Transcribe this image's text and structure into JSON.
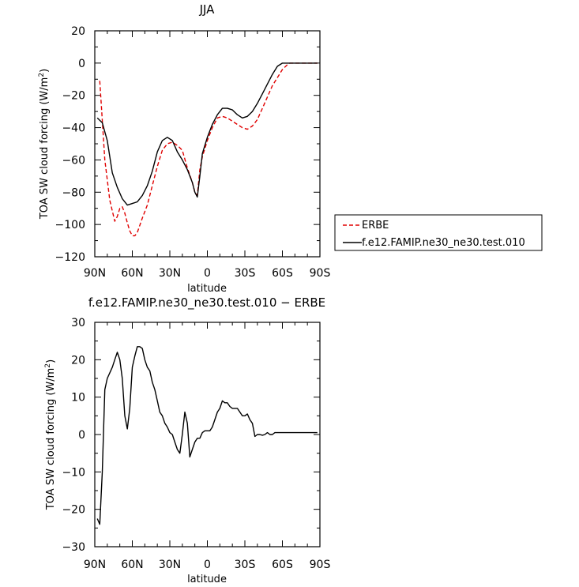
{
  "chart_data": [
    {
      "type": "line",
      "title": "JJA",
      "xlabel": "latitude",
      "ylabel": "TOA SW cloud forcing (W/m",
      "ylabel_sup": "2",
      "ylabel_tail": ")",
      "xlim": [
        90,
        -90
      ],
      "ylim": [
        -120,
        20
      ],
      "x_ticks": [
        90,
        60,
        30,
        0,
        -30,
        -60,
        -90
      ],
      "x_tick_labels": [
        "90N",
        "60N",
        "30N",
        "0",
        "30S",
        "60S",
        "90S"
      ],
      "y_ticks": [
        -120,
        -100,
        -80,
        -60,
        -40,
        -20,
        0,
        20
      ],
      "y_tick_labels": [
        "−120",
        "−100",
        "−80",
        "−60",
        "−40",
        "−20",
        "0",
        "20"
      ],
      "legend_position": "right",
      "series": [
        {
          "name": "ERBE",
          "color": "#e00000",
          "dash": "dashed",
          "x": [
            86,
            82,
            78,
            74,
            72,
            70,
            68,
            66,
            64,
            62,
            60,
            58,
            56,
            52,
            48,
            44,
            40,
            36,
            32,
            28,
            24,
            20,
            16,
            12,
            10,
            8,
            6,
            4,
            0,
            -4,
            -8,
            -12,
            -16,
            -20,
            -24,
            -28,
            -32,
            -36,
            -40,
            -44,
            -48,
            -52,
            -56,
            -60,
            -64,
            -66,
            -68,
            -70,
            -72,
            -76,
            -80,
            -84,
            -88
          ],
          "values": [
            -11,
            -60,
            -85,
            -98,
            -95,
            -90,
            -89,
            -93,
            -99,
            -104,
            -107,
            -107,
            -105,
            -96,
            -88,
            -76,
            -64,
            -54,
            -50,
            -49,
            -51,
            -54,
            -65,
            -74,
            -80,
            -82,
            -66,
            -58,
            -48,
            -40,
            -34,
            -33,
            -34,
            -36,
            -38,
            -40,
            -41,
            -39,
            -35,
            -28,
            -21,
            -14,
            -9,
            -4,
            -1,
            0,
            0,
            0,
            0,
            0,
            0,
            0,
            0
          ]
        },
        {
          "name": "f.e12.FAMIP.ne30_ne30.test.010",
          "color": "#000000",
          "dash": "solid",
          "x": [
            88,
            84,
            80,
            76,
            72,
            68,
            64,
            60,
            56,
            52,
            48,
            44,
            40,
            36,
            32,
            28,
            24,
            20,
            16,
            12,
            10,
            8,
            6,
            4,
            0,
            -4,
            -8,
            -12,
            -16,
            -20,
            -24,
            -28,
            -32,
            -36,
            -40,
            -44,
            -48,
            -52,
            -56,
            -60,
            -64,
            -66,
            -68,
            -70,
            -72,
            -76,
            -80,
            -84,
            -88
          ],
          "values": [
            -34,
            -37,
            -48,
            -68,
            -77,
            -84,
            -88,
            -87,
            -86,
            -82,
            -76,
            -67,
            -55,
            -48,
            -46,
            -48,
            -55,
            -60,
            -66,
            -74,
            -80,
            -83,
            -70,
            -56,
            -46,
            -38,
            -32,
            -28,
            -28,
            -29,
            -32,
            -34,
            -33,
            -30,
            -25,
            -19,
            -13,
            -7,
            -2,
            0,
            0,
            0,
            0,
            0,
            0,
            0,
            0,
            0,
            0
          ]
        }
      ]
    },
    {
      "type": "line",
      "title": "f.e12.FAMIP.ne30_ne30.test.010 − ERBE",
      "xlabel": "latitude",
      "ylabel": "TOA SW cloud forcing (W/m",
      "ylabel_sup": "2",
      "ylabel_tail": ")",
      "xlim": [
        90,
        -90
      ],
      "ylim": [
        -30,
        30
      ],
      "x_ticks": [
        90,
        60,
        30,
        0,
        -30,
        -60,
        -90
      ],
      "x_tick_labels": [
        "90N",
        "60N",
        "30N",
        "0",
        "30S",
        "60S",
        "90S"
      ],
      "y_ticks": [
        -30,
        -20,
        -10,
        0,
        10,
        20,
        30
      ],
      "y_tick_labels": [
        "−30",
        "−20",
        "−10",
        "0",
        "10",
        "20",
        "30"
      ],
      "series": [
        {
          "color": "#000000",
          "dash": "solid",
          "x": [
            88,
            86,
            84,
            82,
            80,
            76,
            74,
            72,
            70,
            68,
            66,
            64,
            62,
            60,
            58,
            56,
            54,
            52,
            50,
            48,
            46,
            44,
            42,
            40,
            38,
            36,
            34,
            32,
            30,
            28,
            26,
            24,
            22,
            20,
            18,
            16,
            14,
            12,
            10,
            8,
            6,
            4,
            2,
            0,
            -2,
            -4,
            -6,
            -8,
            -10,
            -12,
            -14,
            -16,
            -18,
            -20,
            -22,
            -24,
            -26,
            -28,
            -30,
            -32,
            -34,
            -36,
            -38,
            -40,
            -42,
            -44,
            -46,
            -48,
            -50,
            -52,
            -54,
            -56,
            -58,
            -60,
            -62,
            -64,
            -66,
            -68,
            -70,
            -72,
            -74,
            -76,
            -78,
            -80,
            -82,
            -84,
            -86,
            -88
          ],
          "values": [
            -22.5,
            -24,
            -10,
            12,
            15,
            18,
            20,
            22,
            20,
            15,
            5,
            1.5,
            7,
            18,
            21,
            23.5,
            23.5,
            23,
            20,
            18,
            17,
            14,
            12,
            9,
            6,
            5,
            3,
            2,
            0.5,
            0,
            -2,
            -4,
            -5,
            0,
            6,
            3,
            -6,
            -4,
            -2,
            -1,
            -1,
            0.5,
            1,
            1,
            1,
            2,
            4,
            6,
            7,
            9,
            8.5,
            8.5,
            7.5,
            7,
            7,
            7,
            6,
            5,
            5,
            5.5,
            4,
            3,
            -0.5,
            0,
            0,
            -0.2,
            0,
            0.5,
            0,
            0,
            0.5,
            0.5,
            0.5,
            0.5,
            0.5,
            0.5,
            0.5,
            0.5,
            0.5,
            0.5,
            0.5,
            0.5,
            0.5,
            0.5,
            0.5,
            0.5,
            0.5,
            0.5
          ]
        }
      ]
    }
  ]
}
